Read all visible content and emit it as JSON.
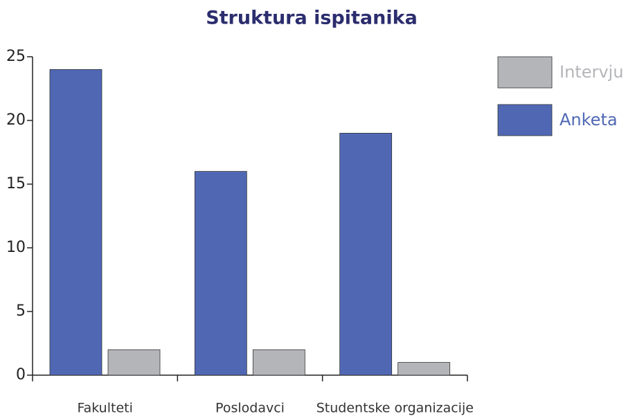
{
  "chart_data": {
    "type": "bar",
    "title": "Struktura ispitanika",
    "categories": [
      "Fakulteti",
      "Poslodavci",
      "Studentske organizacije"
    ],
    "series": [
      {
        "name": "Anketa",
        "color": "#5068b4",
        "values": [
          24,
          16,
          19
        ]
      },
      {
        "name": "Intervju",
        "color": "#b4b5b9",
        "values": [
          2,
          2,
          1
        ]
      }
    ],
    "ylim": [
      0,
      25
    ],
    "yticks": [
      0,
      5,
      10,
      15,
      20,
      25
    ],
    "legend": "right"
  }
}
